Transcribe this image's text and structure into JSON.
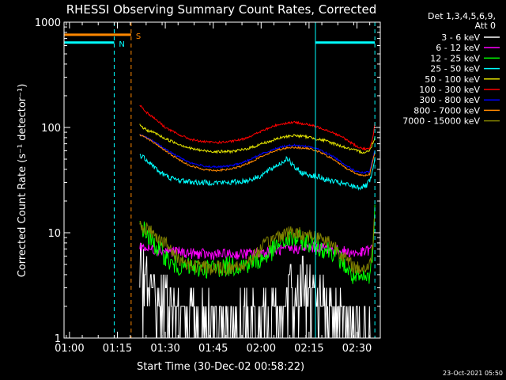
{
  "chart_data": {
    "type": "line",
    "title": "RHESSI Observing Summary Count Rates, Corrected",
    "ylabel": "Corrected Count Rate (s⁻¹ detector⁻¹)",
    "xlabel": "Start Time (30-Dec-02 00:58:22)",
    "yscale": "log",
    "ylim": [
      1,
      1000
    ],
    "xlim_minutes": [
      -1.7,
      97.3
    ],
    "y_ticks": [
      {
        "v": 1,
        "label": "1"
      },
      {
        "v": 10,
        "label": "10"
      },
      {
        "v": 100,
        "label": "100"
      },
      {
        "v": 1000,
        "label": "1000"
      }
    ],
    "x_ticks": [
      {
        "t": 0,
        "label": "01:00"
      },
      {
        "t": 15,
        "label": "01:15"
      },
      {
        "t": 30,
        "label": "01:30"
      },
      {
        "t": 45,
        "label": "01:45"
      },
      {
        "t": 60,
        "label": "02:00"
      },
      {
        "t": 75,
        "label": "02:15"
      },
      {
        "t": 90,
        "label": "02:30"
      }
    ],
    "legend_header": [
      "Det 1,3,4,5,6,9,",
      "Att 0"
    ],
    "series": [
      {
        "name": "3 - 6 keV",
        "color": "#ffffff",
        "t": [
          22,
          25,
          30,
          35,
          40,
          45,
          50,
          55,
          60,
          65,
          68,
          70,
          72,
          75,
          77,
          80,
          84,
          88,
          90,
          92,
          94.5
        ],
        "y": [
          3.5,
          2.7,
          2.0,
          1.5,
          1.2,
          1.1,
          1.1,
          1.15,
          1.3,
          1.7,
          2.3,
          2.6,
          2.7,
          2.6,
          2.2,
          1.8,
          1.3,
          1.1,
          1,
          1,
          1.2
        ]
      },
      {
        "name": "6 - 12 keV",
        "color": "#ff00ff",
        "t": [
          22,
          25,
          30,
          35,
          40,
          45,
          50,
          55,
          60,
          65,
          70,
          75,
          80,
          84,
          88,
          90,
          92,
          94.5
        ],
        "y": [
          7.5,
          7,
          6.8,
          6.5,
          6.3,
          6.2,
          6.2,
          6.3,
          6.5,
          6.8,
          7,
          7.2,
          7.2,
          6.8,
          6.5,
          6.4,
          6.5,
          7
        ]
      },
      {
        "name": "12 - 25 keV",
        "color": "#00ff00",
        "t": [
          22,
          24,
          26,
          28,
          30,
          32,
          35,
          40,
          45,
          50,
          55,
          60,
          63,
          65,
          68,
          70,
          72,
          75,
          78,
          80,
          82,
          84,
          86,
          88,
          90,
          92,
          94,
          95,
          95.6
        ],
        "y": [
          12,
          10,
          8,
          7,
          6,
          5,
          4.8,
          4.6,
          4.6,
          4.8,
          5,
          5.5,
          6.5,
          7.5,
          8.5,
          8.8,
          8.6,
          8,
          7.4,
          7,
          6.8,
          6,
          5,
          4,
          3.6,
          3.6,
          3.8,
          7,
          16
        ]
      },
      {
        "name": "25 - 50 keV",
        "color": "#00ffff",
        "t": [
          22,
          24,
          26,
          28,
          30,
          33,
          36,
          40,
          45,
          50,
          55,
          58,
          60,
          63,
          65,
          67,
          68,
          70,
          72,
          74,
          76,
          78,
          80,
          84,
          88,
          91,
          93,
          94.5,
          95.6
        ],
        "y": [
          55,
          50,
          44,
          38,
          35,
          32,
          31,
          30,
          30,
          30,
          31,
          33,
          35,
          40,
          44,
          47,
          52,
          43,
          38,
          36,
          35,
          34,
          32,
          30,
          28,
          27,
          28,
          33,
          50
        ]
      },
      {
        "name": "50 - 100 keV",
        "color": "#e6e600",
        "t": [
          22,
          24,
          27,
          30,
          34,
          38,
          42,
          46,
          50,
          54,
          58,
          60,
          63,
          65,
          68,
          70,
          72,
          75,
          78,
          80,
          83,
          86,
          88,
          90,
          92,
          94,
          95.6
        ],
        "y": [
          105,
          95,
          88,
          78,
          70,
          63,
          60,
          59,
          59,
          61,
          66,
          70,
          74,
          78,
          82,
          84,
          83,
          81,
          77,
          75,
          70,
          65,
          62,
          60,
          58,
          60,
          80
        ]
      },
      {
        "name": "100 - 300 keV",
        "color": "#ff0000",
        "t": [
          22,
          24,
          27,
          30,
          34,
          38,
          42,
          46,
          50,
          54,
          58,
          60,
          63,
          65,
          68,
          70,
          72,
          75,
          78,
          80,
          83,
          86,
          88,
          90,
          92,
          94,
          95.3,
          95.6
        ],
        "y": [
          165,
          140,
          120,
          100,
          86,
          77,
          73,
          72,
          73,
          77,
          86,
          92,
          100,
          106,
          110,
          112,
          110,
          106,
          100,
          96,
          88,
          79,
          72,
          66,
          63,
          62,
          90,
          115
        ]
      },
      {
        "name": "300 - 800 keV",
        "color": "#0000ff",
        "t": [
          22,
          24,
          27,
          30,
          34,
          38,
          42,
          46,
          50,
          54,
          58,
          60,
          63,
          65,
          68,
          70,
          72,
          75,
          78,
          80,
          83,
          86,
          88,
          90,
          92,
          94,
          95.6
        ],
        "y": [
          85,
          80,
          72,
          62,
          53,
          46,
          43,
          42,
          43,
          46,
          52,
          56,
          60,
          64,
          67,
          68,
          67,
          66,
          62,
          58,
          52,
          45,
          41,
          38,
          37,
          38,
          60
        ]
      },
      {
        "name": "800 - 7000 keV",
        "color": "#ff8800",
        "t": [
          22,
          24,
          27,
          30,
          34,
          38,
          42,
          46,
          50,
          54,
          58,
          60,
          63,
          65,
          68,
          70,
          72,
          75,
          78,
          80,
          83,
          86,
          88,
          90,
          92,
          94,
          95.6
        ],
        "y": [
          85,
          80,
          70,
          60,
          50,
          43,
          40,
          39,
          40,
          43,
          49,
          53,
          58,
          61,
          64,
          65,
          64,
          63,
          59,
          55,
          49,
          42,
          39,
          36,
          35,
          36,
          58
        ]
      },
      {
        "name": "7000 - 15000 keV",
        "color": "#808000",
        "t": [
          22,
          24,
          26,
          28,
          30,
          32,
          35,
          38,
          40,
          45,
          50,
          55,
          60,
          63,
          65,
          68,
          70,
          72,
          75,
          78,
          80,
          82,
          84,
          86,
          88,
          90,
          92,
          94,
          95,
          95.6
        ],
        "y": [
          12,
          11,
          10,
          9,
          8,
          6.5,
          5.5,
          5,
          4.8,
          4.6,
          4.6,
          5,
          7,
          8.5,
          9.3,
          10,
          10,
          9.8,
          9.5,
          9,
          8.6,
          8,
          7,
          5.8,
          5,
          4.6,
          4.6,
          4.8,
          8,
          15
        ]
      }
    ],
    "markers": [
      {
        "label": "N",
        "t": 14.0,
        "y": 640,
        "t_start": -1.7,
        "color": "#00ffff"
      },
      {
        "label": "S",
        "t": 19.3,
        "y": 760,
        "t_start": -1.7,
        "color": "#ff8800"
      }
    ],
    "vertical_lines": [
      {
        "t": 14.0,
        "style": "dashed",
        "color": "#00ffff"
      },
      {
        "t": 19.3,
        "style": "dashed",
        "color": "#ff8800"
      },
      {
        "t": 77.0,
        "style": "solid",
        "color": "#00ffff"
      },
      {
        "t": 95.6,
        "style": "dashed",
        "color": "#00ffff"
      }
    ],
    "post_segment": {
      "t_start": 77.0,
      "t_end": 95.6,
      "y": 640,
      "color": "#00ffff"
    },
    "timestamp": "23-Oct-2021 05:50",
    "grid": false
  }
}
